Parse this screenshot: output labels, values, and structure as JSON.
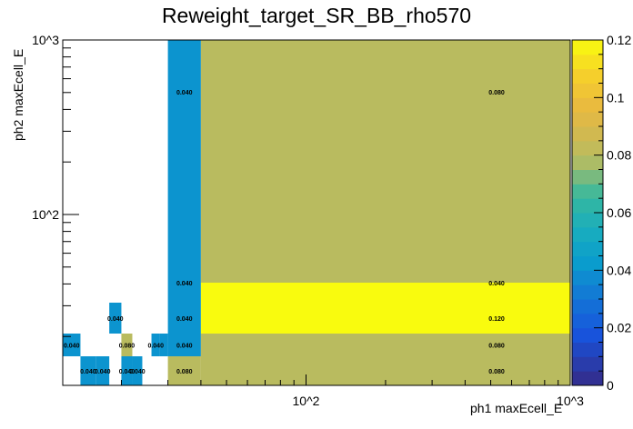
{
  "chart_data": {
    "type": "heatmap",
    "title": "Reweight_target_SR_BB_rho570",
    "xlabel": "ph1 maxEcell_E",
    "ylabel": "ph2 maxEcell_E",
    "x_scale": "log",
    "y_scale": "log",
    "xlim": [
      12,
      1000
    ],
    "ylim": [
      15,
      1000
    ],
    "x_tick_labels": [
      "10^2",
      "10^3"
    ],
    "y_tick_labels": [
      "10^2",
      "10^3"
    ],
    "x_edges": [
      12,
      14,
      16,
      18,
      20,
      22,
      24,
      26,
      28,
      30,
      40,
      1000
    ],
    "y_edges": [
      15,
      20,
      25,
      30,
      35,
      40,
      1000
    ],
    "colorbar": {
      "range": [
        0,
        0.12
      ],
      "ticks": [
        "0",
        "0.02",
        "0.04",
        "0.06",
        "0.08",
        "0.1",
        "0.12"
      ]
    },
    "cells": [
      {
        "x": [
          12,
          14
        ],
        "y": [
          20,
          25
        ],
        "value": 0.04,
        "label": "0.040"
      },
      {
        "x": [
          14,
          16
        ],
        "y": [
          15,
          20
        ],
        "value": 0.04,
        "label": "0.040"
      },
      {
        "x": [
          16,
          18
        ],
        "y": [
          15,
          20
        ],
        "value": 0.04,
        "label": "0.040"
      },
      {
        "x": [
          18,
          20
        ],
        "y": [
          25,
          30
        ],
        "value": 0.04,
        "label": "0.040"
      },
      {
        "x": [
          20,
          22
        ],
        "y": [
          20,
          25
        ],
        "value": 0.08,
        "label": "0.080"
      },
      {
        "x": [
          20,
          22
        ],
        "y": [
          15,
          20
        ],
        "value": 0.04,
        "label": "0.040"
      },
      {
        "x": [
          22,
          24
        ],
        "y": [
          15,
          20
        ],
        "value": 0.04,
        "label": "0.040"
      },
      {
        "x": [
          26,
          28
        ],
        "y": [
          20,
          25
        ],
        "value": 0.04,
        "label": "0.040"
      },
      {
        "x": [
          28,
          30
        ],
        "y": [
          20,
          25
        ],
        "value": 0.04,
        "label": ""
      },
      {
        "x": [
          30,
          40
        ],
        "y": [
          15,
          20
        ],
        "value": 0.08,
        "label": "0.080"
      },
      {
        "x": [
          30,
          40
        ],
        "y": [
          20,
          25
        ],
        "value": 0.04,
        "label": "0.040"
      },
      {
        "x": [
          30,
          40
        ],
        "y": [
          25,
          30
        ],
        "value": 0.04,
        "label": "0.040"
      },
      {
        "x": [
          30,
          40
        ],
        "y": [
          30,
          35
        ],
        "value": 0.04,
        "label": ""
      },
      {
        "x": [
          30,
          40
        ],
        "y": [
          35,
          40
        ],
        "value": 0.04,
        "label": "0.040"
      },
      {
        "x": [
          30,
          40
        ],
        "y": [
          40,
          1000
        ],
        "value": 0.04,
        "label": "0.040"
      },
      {
        "x": [
          40,
          1000
        ],
        "y": [
          15,
          20
        ],
        "value": 0.08,
        "label": "0.080"
      },
      {
        "x": [
          40,
          1000
        ],
        "y": [
          20,
          25
        ],
        "value": 0.08,
        "label": "0.080"
      },
      {
        "x": [
          40,
          1000
        ],
        "y": [
          25,
          30
        ],
        "value": 0.12,
        "label": "0.120"
      },
      {
        "x": [
          40,
          1000
        ],
        "y": [
          30,
          35
        ],
        "value": 0.12,
        "label": ""
      },
      {
        "x": [
          40,
          1000
        ],
        "y": [
          35,
          40
        ],
        "value": 0.04,
        "label": "0.040"
      },
      {
        "x": [
          40,
          1000
        ],
        "y": [
          40,
          1000
        ],
        "value": 0.08,
        "label": "0.080"
      }
    ]
  }
}
